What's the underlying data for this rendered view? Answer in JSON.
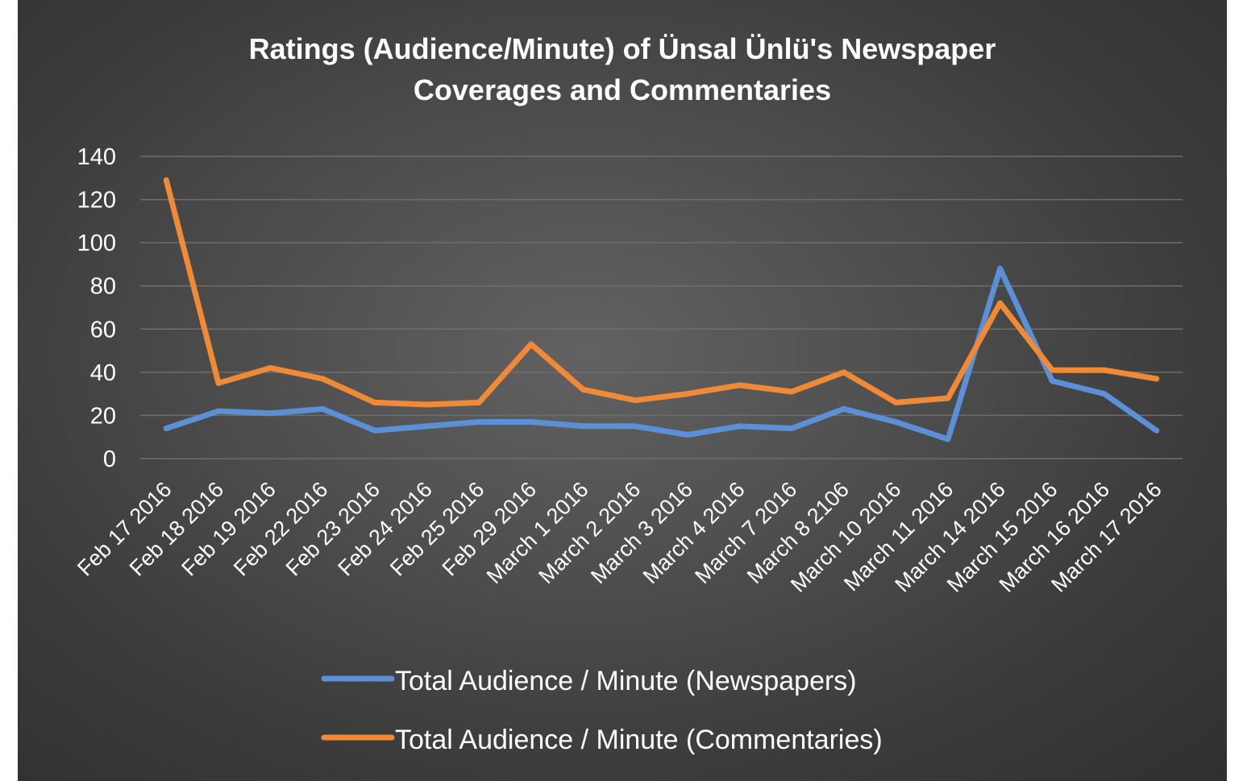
{
  "chart_data": {
    "type": "line",
    "title": "Ratings (Audience/Minute) of Ünsal Ünlü's Newspaper Coverages and Commentaries",
    "title_lines": [
      "Ratings (Audience/Minute) of Ünsal Ünlü's Newspaper",
      "Coverages and Commentaries"
    ],
    "categories": [
      "Feb 17 2016",
      "Feb 18 2016",
      "Feb 19 2016",
      "Feb 22 2016",
      "Feb 23 2016",
      "Feb 24 2016",
      "Feb 25 2016",
      "Feb 29 2016",
      "March 1 2016",
      "March 2 2016",
      "March 3 2016",
      "March 4 2016",
      "March 7 2016",
      "March 8 2106",
      "March 10 2016",
      "March 11 2016",
      "March 14 2016",
      "March 15 2016",
      "March 16 2016",
      "March 17 2016"
    ],
    "series": [
      {
        "name": "Total Audience / Minute (Newspapers)",
        "color": "#5b8fd6",
        "values": [
          14,
          22,
          21,
          23,
          13,
          15,
          17,
          17,
          15,
          15,
          11,
          15,
          14,
          23,
          17,
          9,
          88,
          36,
          30,
          13
        ]
      },
      {
        "name": "Total Audience / Minute (Commentaries)",
        "color": "#f08a36",
        "values": [
          129,
          35,
          42,
          37,
          26,
          25,
          26,
          53,
          32,
          27,
          30,
          34,
          31,
          40,
          26,
          28,
          72,
          41,
          41,
          37
        ]
      }
    ],
    "ylim": [
      0,
      140
    ],
    "yticks": [
      "0",
      "20",
      "40",
      "60",
      "80",
      "100",
      "120",
      "140"
    ],
    "grid": true,
    "legend_position": "bottom"
  }
}
